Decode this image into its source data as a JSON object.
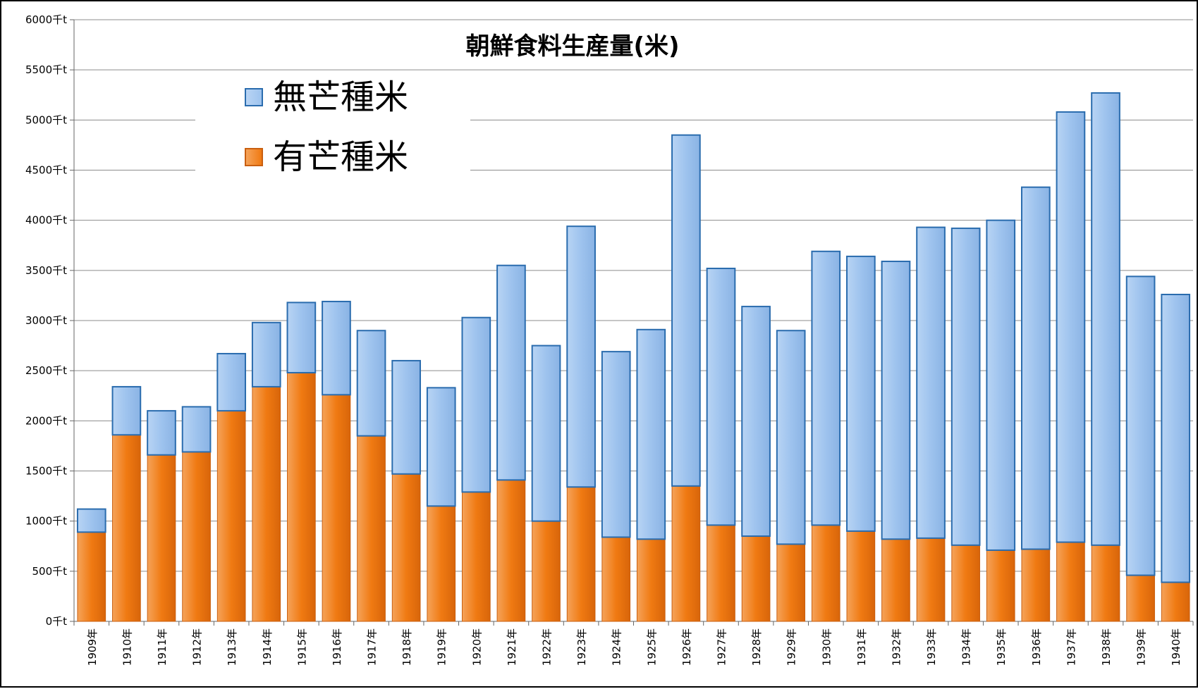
{
  "chart_data": {
    "type": "bar",
    "stacked": true,
    "title": "朝鮮食料生産量(米)",
    "xlabel": "",
    "ylabel": "",
    "ylim": [
      0,
      6000
    ],
    "yticks": [
      "0千t",
      "500千t",
      "1000千t",
      "1500千t",
      "2000千t",
      "2500千t",
      "3000千t",
      "3500千t",
      "4000千t",
      "4500千t",
      "5000千t",
      "5500千t",
      "6000千t"
    ],
    "ytick_values": [
      0,
      500,
      1000,
      1500,
      2000,
      2500,
      3000,
      3500,
      4000,
      4500,
      5000,
      5500,
      6000
    ],
    "grid": true,
    "legend": "top-left",
    "categories": [
      "1909年",
      "1910年",
      "1911年",
      "1912年",
      "1913年",
      "1914年",
      "1915年",
      "1916年",
      "1917年",
      "1918年",
      "1919年",
      "1920年",
      "1921年",
      "1922年",
      "1923年",
      "1924年",
      "1925年",
      "1926年",
      "1927年",
      "1928年",
      "1929年",
      "1930年",
      "1931年",
      "1932年",
      "1933年",
      "1934年",
      "1935年",
      "1936年",
      "1937年",
      "1938年",
      "1939年",
      "1940年"
    ],
    "series": [
      {
        "name": "有芒種米",
        "color": "#f07a12",
        "values": [
          890,
          1860,
          1660,
          1690,
          2100,
          2340,
          2480,
          2260,
          1850,
          1470,
          1150,
          1290,
          1410,
          1000,
          1340,
          840,
          820,
          1350,
          960,
          850,
          770,
          960,
          900,
          820,
          830,
          760,
          710,
          720,
          790,
          760,
          460,
          390
        ]
      },
      {
        "name": "無芒種米",
        "color": "#9ec3ee",
        "values": [
          230,
          480,
          440,
          450,
          570,
          640,
          700,
          930,
          1050,
          1130,
          1180,
          1740,
          2140,
          1750,
          2600,
          1850,
          2090,
          3500,
          2560,
          2290,
          2130,
          2730,
          2740,
          2770,
          3100,
          3160,
          3290,
          3610,
          4290,
          4510,
          2980,
          2870
        ]
      }
    ]
  },
  "legend": {
    "items": [
      {
        "label": "無芒種米",
        "color": "#9ec3ee"
      },
      {
        "label": "有芒種米",
        "color": "#f07a12"
      }
    ]
  }
}
